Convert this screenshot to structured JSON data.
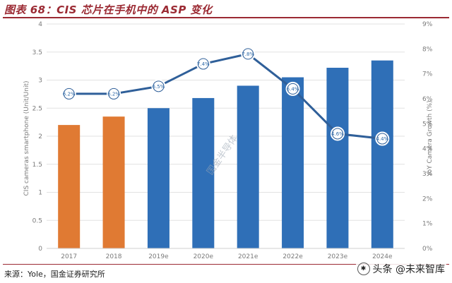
{
  "figure": {
    "title": "图表 68：CIS 芯片在手机中的 ASP 变化",
    "source": "来源：Yole，国金证券研究所",
    "watermark_center": "国金半导体",
    "watermark_corner": "头条 @未来智库"
  },
  "chart_data": {
    "type": "bar",
    "categories": [
      "2017",
      "2018",
      "2019e",
      "2020e",
      "2021e",
      "2022e",
      "2023e",
      "2024e"
    ],
    "bar_values": [
      2.2,
      2.35,
      2.5,
      2.68,
      2.9,
      3.05,
      3.22,
      3.35
    ],
    "bar_colors": [
      "#e07a33",
      "#e07a33",
      "#2f6fb7",
      "#2f6fb7",
      "#2f6fb7",
      "#2f6fb7",
      "#2f6fb7",
      "#2f6fb7"
    ],
    "line_values": [
      6.2,
      6.2,
      6.5,
      7.4,
      7.8,
      6.4,
      4.6,
      4.4
    ],
    "line_labels": [
      "6.2%",
      "6.2%",
      "6.5%",
      "7.4%",
      "7.8%",
      "6.4%",
      "4.6%",
      "4.4%"
    ],
    "line_color": "#2f5f99",
    "ylabel": "CIS cameras smartphone (Unit/Unit)",
    "y2label": "YoY Camera Growth (%)",
    "ylim": [
      0,
      4
    ],
    "y2lim": [
      0,
      9
    ],
    "yticks": [
      "0",
      "0.5",
      "1",
      "1.5",
      "2",
      "2.5",
      "3",
      "3.5",
      "4"
    ],
    "y2ticks": [
      "0%",
      "1%",
      "2%",
      "3%",
      "4%",
      "5%",
      "6%",
      "7%",
      "8%",
      "9%"
    ],
    "grid": true
  }
}
